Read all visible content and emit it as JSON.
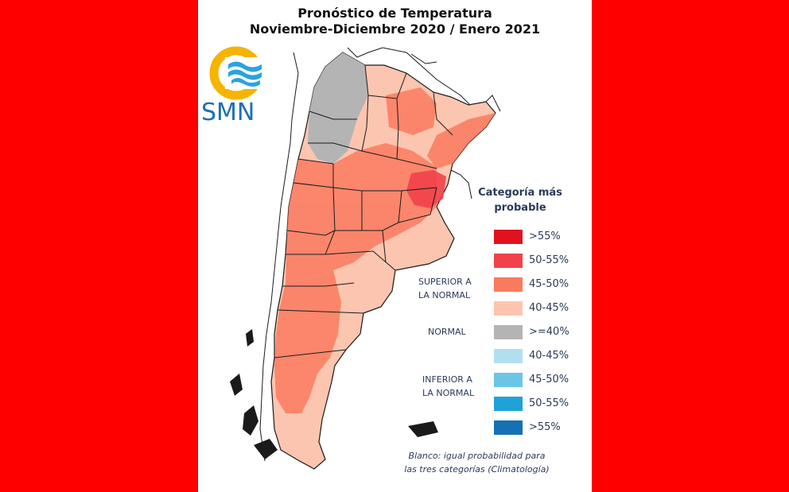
{
  "title": {
    "line1": "Pronóstico de Temperatura",
    "line2": "Noviembre-Diciembre 2020 / Enero 2021"
  },
  "logo": {
    "text": "SMN",
    "colors": {
      "ring": "#f5b400",
      "waves": "#2aa3e0"
    }
  },
  "legend": {
    "title_line1": "Categoría más",
    "title_line2": "probable",
    "items": [
      {
        "label": ">55%",
        "color": "#e0121e",
        "group": "superior"
      },
      {
        "label": "50-55%",
        "color": "#f1414a",
        "group": "superior"
      },
      {
        "label": "45-50%",
        "color": "#fa7a60",
        "group": "superior"
      },
      {
        "label": "40-45%",
        "color": "#fcc5b0",
        "group": "superior"
      },
      {
        "label": ">=40%",
        "color": "#b4b4b4",
        "group": "normal"
      },
      {
        "label": "40-45%",
        "color": "#b2dff0",
        "group": "inferior"
      },
      {
        "label": "45-50%",
        "color": "#6cc4e6",
        "group": "inferior"
      },
      {
        "label": "50-55%",
        "color": "#1fa2d6",
        "group": "inferior"
      },
      {
        "label": ">55%",
        "color": "#1670b4",
        "group": "inferior"
      }
    ],
    "groups": {
      "superior_line1": "SUPERIOR A",
      "superior_line2": "LA NORMAL",
      "normal": "NORMAL",
      "inferior_line1": "INFERIOR A",
      "inferior_line2": "LA NORMAL"
    }
  },
  "note": {
    "line1": "Blanco: igual probabilidad para",
    "line2": "las tres categorías (Climatología)"
  },
  "colors": {
    "background": "#ff0000",
    "panel": "#ffffff",
    "border": "#1a1a1a"
  }
}
